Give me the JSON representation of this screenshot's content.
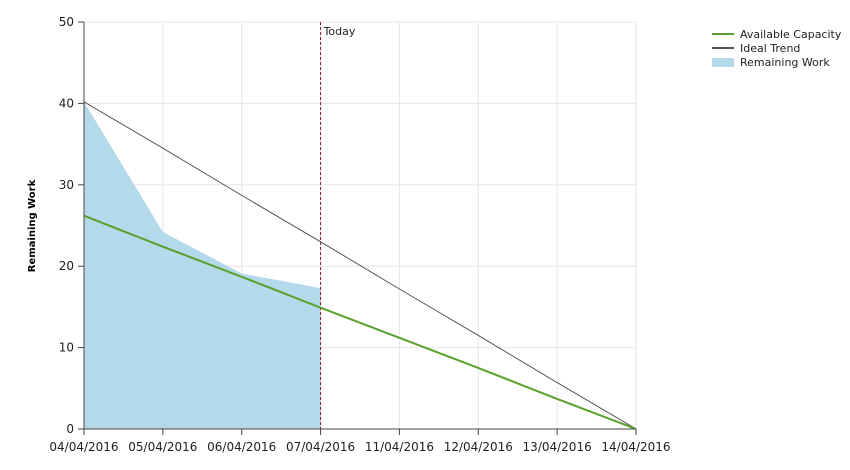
{
  "chart_data": {
    "type": "area",
    "x": [
      "04/04/2016",
      "05/04/2016",
      "06/04/2016",
      "07/04/2016",
      "11/04/2016",
      "12/04/2016",
      "13/04/2016",
      "14/04/2016"
    ],
    "ylabel": "Remaining Work",
    "xlabel": "",
    "title": "",
    "ylim": [
      0,
      50
    ],
    "yticks": [
      0,
      10,
      20,
      30,
      40,
      50
    ],
    "grid": true,
    "legend_position": "top-right",
    "today": {
      "label": "Today",
      "x": "07/04/2016"
    },
    "series": [
      {
        "name": "Available Capacity",
        "kind": "line",
        "color": "#5aa02c",
        "values": [
          26.2,
          22.4,
          18.7,
          14.9,
          11.2,
          7.5,
          3.7,
          0
        ]
      },
      {
        "name": "Ideal Trend",
        "kind": "line",
        "color": "#555555",
        "values": [
          40.2,
          34.5,
          28.7,
          23,
          17.2,
          11.5,
          5.7,
          0
        ]
      },
      {
        "name": "Remaining Work",
        "kind": "area",
        "color": "#b3d9ea",
        "values": [
          40.2,
          24.2,
          19.1,
          17.3,
          null,
          null,
          null,
          null
        ]
      }
    ]
  }
}
